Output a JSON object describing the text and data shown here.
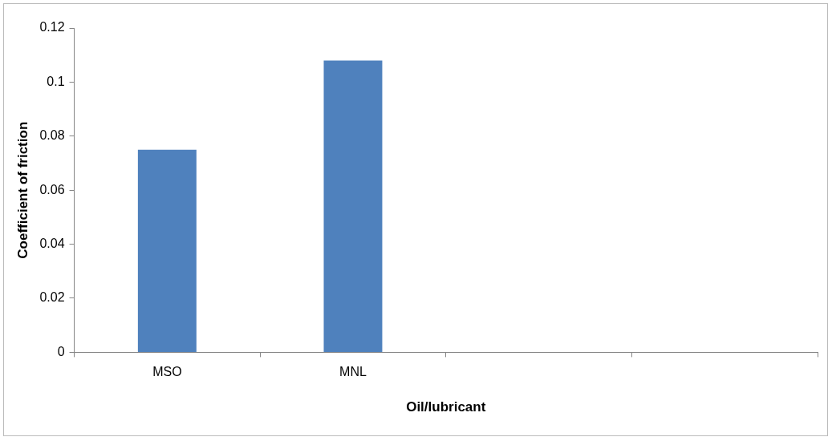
{
  "chart_data": {
    "type": "bar",
    "xlabel": "Oil/lubricant",
    "ylabel": "Coefficient of friction",
    "categories": [
      "MSO",
      "MNL",
      null,
      null
    ],
    "values": [
      0.075,
      0.108,
      null,
      null
    ],
    "color": "#4f81bd",
    "ylim": [
      0,
      0.12
    ],
    "yticks": [
      0,
      0.02,
      0.04,
      0.06,
      0.08,
      0.1,
      0.12
    ],
    "grid": false,
    "legend": false
  }
}
